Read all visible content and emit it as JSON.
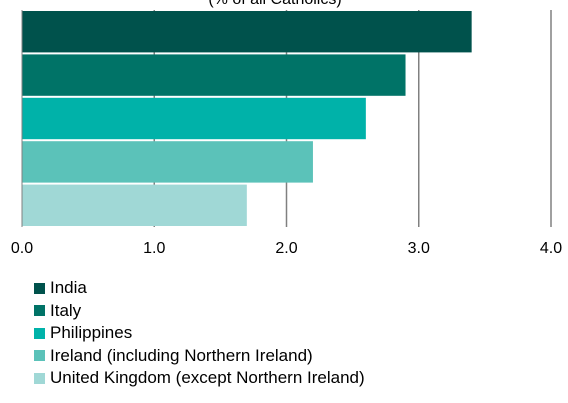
{
  "chart_data": {
    "type": "bar",
    "orientation": "horizontal",
    "subtitle": "(% of all Catholics)",
    "categories": [
      "India",
      "Italy",
      "Philippines",
      "Ireland (including Northern Ireland)",
      "United Kingdom (except Northern Ireland)"
    ],
    "values": [
      3.4,
      2.9,
      2.6,
      2.2,
      1.7
    ],
    "colors": [
      "#00524c",
      "#007367",
      "#00b2a9",
      "#5bc2b9",
      "#a0d8d6"
    ],
    "xlim": [
      0,
      4.0
    ],
    "xticks": [
      "0.0",
      "1.0",
      "2.0",
      "3.0",
      "4.0"
    ],
    "grid": true,
    "legend_position": "bottom-left"
  }
}
